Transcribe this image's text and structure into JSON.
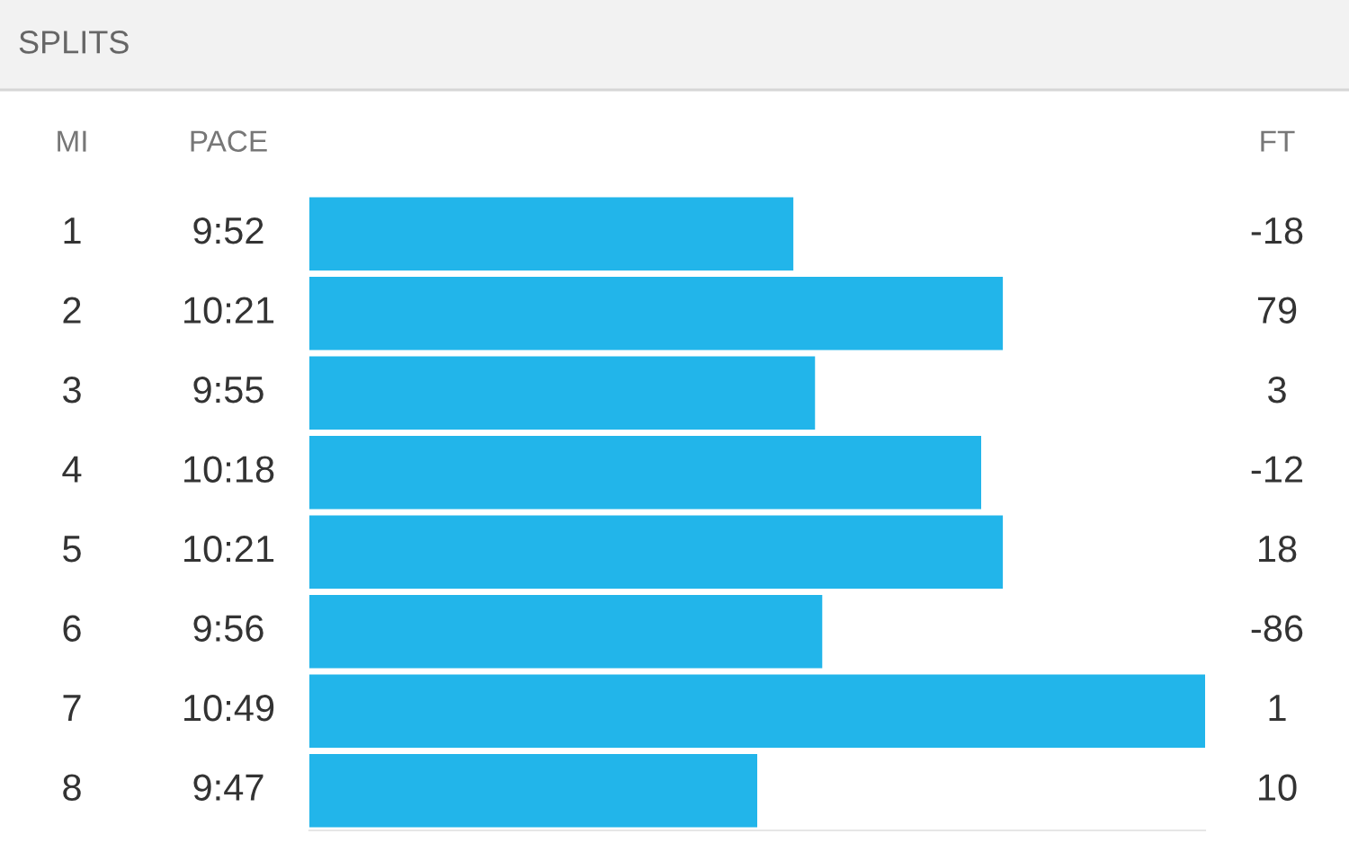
{
  "chart_data": {
    "type": "bar",
    "orientation": "horizontal",
    "title": "SPLITS",
    "categories": [
      "1",
      "2",
      "3",
      "4",
      "5",
      "6",
      "7",
      "8"
    ],
    "values": [
      592,
      621,
      595,
      618,
      621,
      596,
      649,
      587
    ],
    "value_labels": [
      "9:52",
      "10:21",
      "9:55",
      "10:18",
      "10:21",
      "9:56",
      "10:49",
      "9:47"
    ],
    "xlim": [
      525,
      649
    ],
    "color": "#22b5ea",
    "annotations": [
      "MI",
      "PACE",
      "FT",
      "-18",
      "79",
      "3",
      "-12",
      "18",
      "-86",
      "1",
      "10"
    ],
    "legend": false
  }
}
